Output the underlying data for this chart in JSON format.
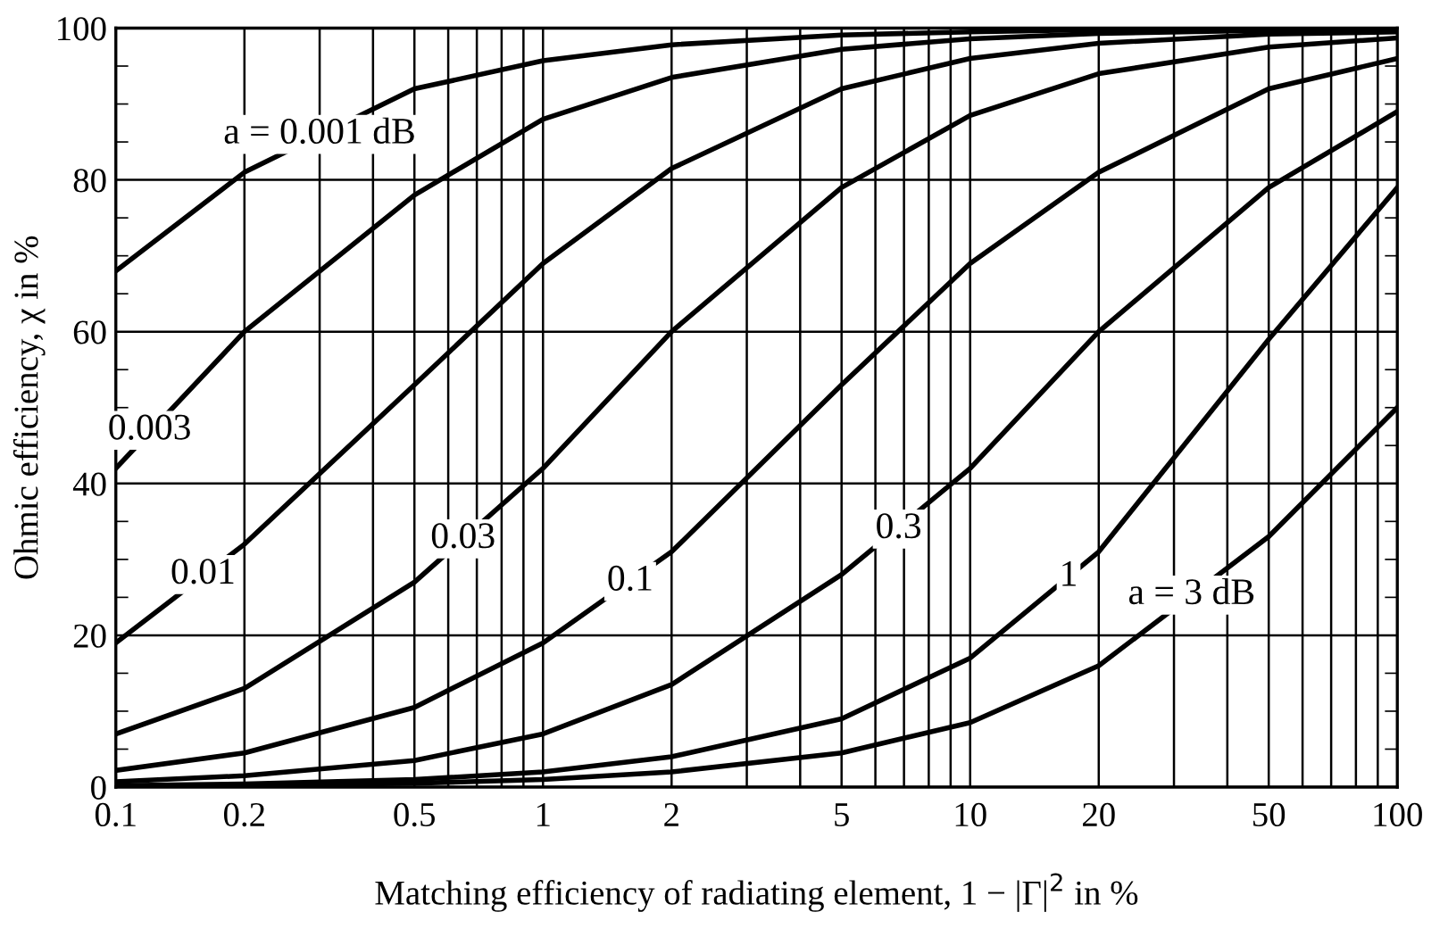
{
  "chart_data": {
    "type": "line",
    "xlabel": "Matching efficiency of radiating element, 1 − |Γ|$^{2}$ in %",
    "ylabel": "Ohmic efficiency, χ in %",
    "log": "x",
    "grid": true,
    "legend": false,
    "marker": "none",
    "line_style": "solid",
    "x": [
      0.1,
      0.2,
      0.5,
      1,
      2,
      5,
      10,
      20,
      50,
      100
    ],
    "xlim": [
      0.1,
      100
    ],
    "xticks": [
      {
        "value": 0.1,
        "label": "0.1"
      },
      {
        "value": 0.2,
        "label": "0.2"
      },
      {
        "value": 0.5,
        "label": "0.5"
      },
      1,
      2,
      5,
      10,
      20,
      50,
      100
    ],
    "ylim": [
      0,
      100
    ],
    "yticks": [
      0,
      {
        "value": 5,
        "label": null
      },
      {
        "value": 10,
        "label": null
      },
      {
        "value": 15,
        "label": null
      },
      20,
      {
        "value": 25,
        "label": null
      },
      {
        "value": 30,
        "label": null
      },
      {
        "value": 35,
        "label": null
      },
      40,
      {
        "value": 45,
        "label": null
      },
      {
        "value": 50,
        "label": null
      },
      {
        "value": 55,
        "label": null
      },
      60,
      {
        "value": 65,
        "label": null
      },
      {
        "value": 70,
        "label": null
      },
      {
        "value": 75,
        "label": null
      },
      80,
      {
        "value": 85,
        "label": null
      },
      {
        "value": 90,
        "label": null
      },
      {
        "value": 95,
        "label": null
      },
      100
    ],
    "series": [
      {
        "color": "#000000",
        "values": [
          68,
          81,
          92,
          95.7,
          97.8,
          99.1,
          99.5,
          99.8,
          99.9,
          100
        ]
      },
      {
        "color": "#000000",
        "values": [
          42,
          60,
          78,
          88,
          93.5,
          97.2,
          98.6,
          99.3,
          99.7,
          99.9
        ]
      },
      {
        "color": "#000000",
        "values": [
          19,
          32,
          53,
          69,
          81.5,
          92,
          96,
          98,
          99.2,
          99.5
        ]
      },
      {
        "color": "#000000",
        "values": [
          7,
          13,
          27,
          42,
          60,
          79,
          88.5,
          94,
          97.5,
          98.7
        ]
      },
      {
        "color": "#000000",
        "values": [
          2.2,
          4.5,
          10.5,
          19,
          31,
          53,
          69,
          81,
          92,
          96
        ]
      },
      {
        "color": "#000000",
        "values": [
          0.7,
          1.5,
          3.5,
          7,
          13.5,
          28,
          42,
          60,
          79,
          89
        ]
      },
      {
        "color": "#000000",
        "values": [
          0.2,
          0.4,
          1,
          2,
          4,
          9,
          17,
          31,
          59,
          79
        ]
      },
      {
        "color": "#000000",
        "values": [
          0.1,
          0.2,
          0.5,
          1,
          2,
          4.5,
          8.5,
          16,
          33,
          50
        ]
      }
    ],
    "annotations": [
      {
        "text": "a = 0.001 dB",
        "x": 0.3,
        "y": 86
      },
      {
        "text": "0.003",
        "x": 0.12,
        "y": 47
      },
      {
        "text": "0.01",
        "x": 0.16,
        "y": 28
      },
      {
        "text": "0.03",
        "x": 0.65,
        "y": 32.7
      },
      {
        "text": "0.1",
        "x": 1.6,
        "y": 27.1
      },
      {
        "text": "0.3",
        "x": 6.8,
        "y": 34
      },
      {
        "text": "1",
        "x": 17,
        "y": 27.7
      },
      {
        "text": "a = 3 dB",
        "x": 33,
        "y": 25.3
      }
    ]
  }
}
